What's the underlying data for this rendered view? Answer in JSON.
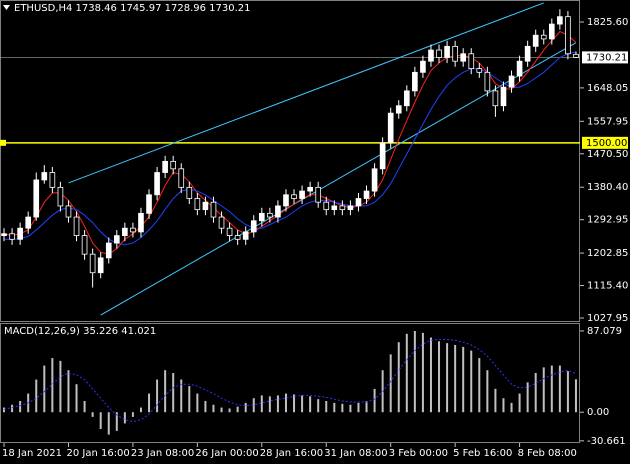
{
  "chart_data": [
    {
      "type": "candlestick",
      "title": "ETHUSD,H4  1738.46 1745.97 1728.96 1730.21",
      "categories": [
        "18 Jan 2021",
        null,
        null,
        null,
        null,
        null,
        null,
        null,
        "20 Jan 16:00",
        null,
        null,
        null,
        null,
        null,
        null,
        null,
        "23 Jan 08:00",
        null,
        null,
        null,
        null,
        null,
        null,
        null,
        "26 Jan 00:00",
        null,
        null,
        null,
        null,
        null,
        null,
        null,
        "28 Jan 16:00",
        null,
        null,
        null,
        null,
        null,
        null,
        null,
        "31 Jan 08:00",
        null,
        null,
        null,
        null,
        null,
        null,
        null,
        "3 Feb 00:00",
        null,
        null,
        null,
        null,
        null,
        null,
        null,
        "5 Feb 16:00",
        null,
        null,
        null,
        null,
        null,
        null,
        null,
        "8 Feb 08:00",
        null,
        null,
        null,
        null,
        null,
        null,
        null
      ],
      "open": [
        1250,
        1255,
        1240,
        1270,
        1300,
        1400,
        1420,
        1380,
        1330,
        1300,
        1250,
        1200,
        1150,
        1190,
        1230,
        1250,
        1270,
        1260,
        1310,
        1360,
        1420,
        1450,
        1430,
        1380,
        1350,
        1320,
        1340,
        1300,
        1270,
        1250,
        1240,
        1260,
        1290,
        1310,
        1300,
        1330,
        1360,
        1350,
        1370,
        1380,
        1340,
        1320,
        1330,
        1320,
        1330,
        1350,
        1370,
        1430,
        1500,
        1580,
        1600,
        1640,
        1690,
        1720,
        1750,
        1730,
        1760,
        1720,
        1740,
        1700,
        1690,
        1640,
        1600,
        1650,
        1680,
        1720,
        1760,
        1790,
        1780,
        1820,
        1840,
        1738.46
      ],
      "high": [
        1270,
        1270,
        1285,
        1315,
        1420,
        1440,
        1435,
        1395,
        1345,
        1315,
        1265,
        1215,
        1205,
        1245,
        1265,
        1285,
        1285,
        1325,
        1375,
        1435,
        1465,
        1465,
        1445,
        1395,
        1365,
        1355,
        1355,
        1315,
        1285,
        1265,
        1275,
        1305,
        1325,
        1325,
        1345,
        1375,
        1375,
        1385,
        1395,
        1395,
        1355,
        1345,
        1345,
        1345,
        1365,
        1385,
        1445,
        1515,
        1595,
        1615,
        1655,
        1705,
        1735,
        1765,
        1765,
        1775,
        1775,
        1755,
        1755,
        1715,
        1705,
        1655,
        1665,
        1695,
        1735,
        1775,
        1805,
        1805,
        1835,
        1860,
        1855,
        1745.97
      ],
      "low": [
        1235,
        1225,
        1225,
        1255,
        1290,
        1390,
        1365,
        1315,
        1285,
        1235,
        1185,
        1110,
        1135,
        1175,
        1215,
        1235,
        1245,
        1245,
        1295,
        1345,
        1405,
        1415,
        1365,
        1335,
        1305,
        1305,
        1285,
        1255,
        1235,
        1225,
        1225,
        1245,
        1275,
        1285,
        1285,
        1315,
        1335,
        1335,
        1355,
        1325,
        1305,
        1305,
        1305,
        1305,
        1315,
        1335,
        1355,
        1415,
        1485,
        1565,
        1585,
        1625,
        1675,
        1705,
        1715,
        1715,
        1705,
        1705,
        1685,
        1675,
        1625,
        1570,
        1585,
        1635,
        1665,
        1705,
        1745,
        1765,
        1765,
        1805,
        1725,
        1728.96
      ],
      "close": [
        1255,
        1240,
        1270,
        1300,
        1400,
        1420,
        1380,
        1330,
        1300,
        1250,
        1200,
        1150,
        1190,
        1230,
        1250,
        1270,
        1260,
        1310,
        1360,
        1420,
        1450,
        1430,
        1380,
        1350,
        1320,
        1340,
        1300,
        1270,
        1250,
        1240,
        1260,
        1290,
        1310,
        1300,
        1330,
        1360,
        1350,
        1370,
        1380,
        1340,
        1320,
        1330,
        1320,
        1330,
        1350,
        1370,
        1430,
        1500,
        1580,
        1600,
        1640,
        1690,
        1720,
        1750,
        1730,
        1760,
        1720,
        1740,
        1700,
        1690,
        1640,
        1600,
        1650,
        1680,
        1720,
        1760,
        1790,
        1780,
        1820,
        1840,
        1740,
        1730.21
      ],
      "up_color": "#ffffff",
      "down_color": "#000000",
      "wick_color": "#ffffff",
      "lines": [
        {
          "color": "#ff2020",
          "values": [
            1255,
            1250,
            1255,
            1265,
            1300,
            1340,
            1365,
            1365,
            1345,
            1315,
            1275,
            1230,
            1205,
            1200,
            1215,
            1240,
            1255,
            1275,
            1300,
            1340,
            1385,
            1420,
            1415,
            1395,
            1365,
            1345,
            1325,
            1305,
            1285,
            1265,
            1255,
            1260,
            1275,
            1290,
            1305,
            1320,
            1335,
            1350,
            1360,
            1360,
            1350,
            1340,
            1330,
            1325,
            1330,
            1340,
            1365,
            1400,
            1455,
            1510,
            1560,
            1610,
            1655,
            1695,
            1715,
            1730,
            1735,
            1735,
            1730,
            1715,
            1690,
            1660,
            1645,
            1645,
            1665,
            1690,
            1720,
            1750,
            1775,
            1800,
            1790,
            1770
          ]
        },
        {
          "color": "#2040ff",
          "values": [
            1240,
            1240,
            1242,
            1248,
            1265,
            1285,
            1305,
            1320,
            1325,
            1320,
            1305,
            1285,
            1260,
            1240,
            1230,
            1225,
            1230,
            1245,
            1265,
            1290,
            1320,
            1350,
            1370,
            1375,
            1370,
            1360,
            1345,
            1330,
            1315,
            1295,
            1280,
            1270,
            1270,
            1280,
            1290,
            1300,
            1315,
            1330,
            1340,
            1345,
            1345,
            1340,
            1335,
            1330,
            1330,
            1330,
            1340,
            1360,
            1390,
            1430,
            1470,
            1510,
            1550,
            1590,
            1625,
            1655,
            1675,
            1690,
            1700,
            1700,
            1690,
            1675,
            1660,
            1650,
            1650,
            1660,
            1675,
            1690,
            1710,
            1730,
            1740,
            1745
          ]
        }
      ],
      "channel": {
        "color": "#40c8ff",
        "upper": {
          "x": [
            8,
            67
          ],
          "y": [
            1392,
            1877
          ]
        },
        "lower": {
          "x": [
            12,
            71
          ],
          "y": [
            1036,
            1770
          ]
        }
      },
      "price_line": {
        "value": 1730.21,
        "color": "#a0a0a0"
      },
      "level": {
        "value": 1500,
        "label": "1500.00",
        "color": "#ffff00"
      },
      "ylim": [
        1017.2,
        1884.9
      ],
      "yticks": [
        {
          "value": 1825.6,
          "label": "1825.60"
        },
        1648.05,
        1557.95,
        {
          "value": 1470.5,
          "label": "1470.50"
        },
        {
          "value": 1380.4,
          "label": "1380.40"
        },
        1292.95,
        1202.85,
        {
          "value": 1115.4,
          "label": "1115.40"
        },
        1027.95
      ]
    },
    {
      "type": "macd",
      "title": "MACD(12,26,9) 35.226 41.021",
      "histogram": {
        "color": "#c0c0c0",
        "values": [
          5,
          8,
          12,
          20,
          35,
          50,
          58,
          55,
          45,
          30,
          12,
          -5,
          -18,
          -24,
          -20,
          -12,
          -5,
          5,
          20,
          35,
          45,
          42,
          35,
          28,
          20,
          12,
          8,
          5,
          4,
          6,
          10,
          15,
          18,
          17,
          18,
          20,
          19,
          18,
          17,
          14,
          12,
          10,
          9,
          8,
          10,
          12,
          25,
          45,
          62,
          75,
          84,
          87,
          85,
          80,
          76,
          74,
          72,
          70,
          66,
          58,
          45,
          25,
          15,
          10,
          20,
          32,
          42,
          48,
          50,
          50,
          44,
          35.226
        ]
      },
      "signal": {
        "color": "#3030ff",
        "values": [
          3,
          5,
          7,
          10,
          15,
          22,
          30,
          38,
          42,
          40,
          35,
          25,
          15,
          5,
          -3,
          -8,
          -10,
          -8,
          -2,
          8,
          18,
          26,
          30,
          30,
          28,
          24,
          20,
          15,
          11,
          8,
          7,
          8,
          10,
          12,
          14,
          15,
          17,
          18,
          18,
          17,
          16,
          14,
          12,
          11,
          11,
          11,
          14,
          22,
          33,
          45,
          56,
          66,
          73,
          77,
          78,
          78,
          77,
          75,
          72,
          67,
          60,
          50,
          40,
          30,
          26,
          27,
          31,
          36,
          40,
          43,
          45,
          41.021
        ]
      },
      "ylim": [
        -31.9,
        94.5
      ],
      "yticks": [
        87.079,
        {
          "value": 0,
          "label": "0.00"
        },
        -30.661
      ]
    }
  ]
}
